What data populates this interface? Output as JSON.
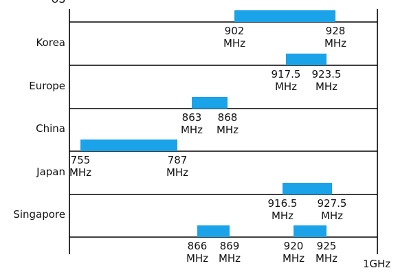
{
  "chart_data": {
    "type": "bar",
    "title": "",
    "xlabel": "",
    "ylabel": "",
    "unit": "MHz",
    "axis_end_label": "1GHz",
    "xlim": [
      750,
      1000
    ],
    "bar_color": "#1aa3e8",
    "grid": false,
    "categories": [
      "US",
      "Korea",
      "Europe",
      "China",
      "Japan",
      "Singapore"
    ],
    "series": [
      {
        "label": "US",
        "bands": [
          {
            "start": 902,
            "end": 928,
            "start_label": "902",
            "end_label": "928"
          }
        ]
      },
      {
        "label": "Korea",
        "bands": [
          {
            "start": 917.5,
            "end": 923.5,
            "start_label": "917.5",
            "end_label": "923.5"
          }
        ]
      },
      {
        "label": "Europe",
        "bands": [
          {
            "start": 863,
            "end": 868,
            "start_label": "863",
            "end_label": "868"
          }
        ]
      },
      {
        "label": "China",
        "bands": [
          {
            "start": 755,
            "end": 787,
            "start_label": "755",
            "end_label": "787"
          }
        ]
      },
      {
        "label": "Japan",
        "bands": [
          {
            "start": 916.5,
            "end": 927.5,
            "start_label": "916.5",
            "end_label": "927.5"
          }
        ]
      },
      {
        "label": "Singapore",
        "bands": [
          {
            "start": 866,
            "end": 869,
            "start_label": "866",
            "end_label": "869"
          },
          {
            "start": 920,
            "end": 925,
            "start_label": "920",
            "end_label": "925"
          }
        ]
      }
    ]
  }
}
